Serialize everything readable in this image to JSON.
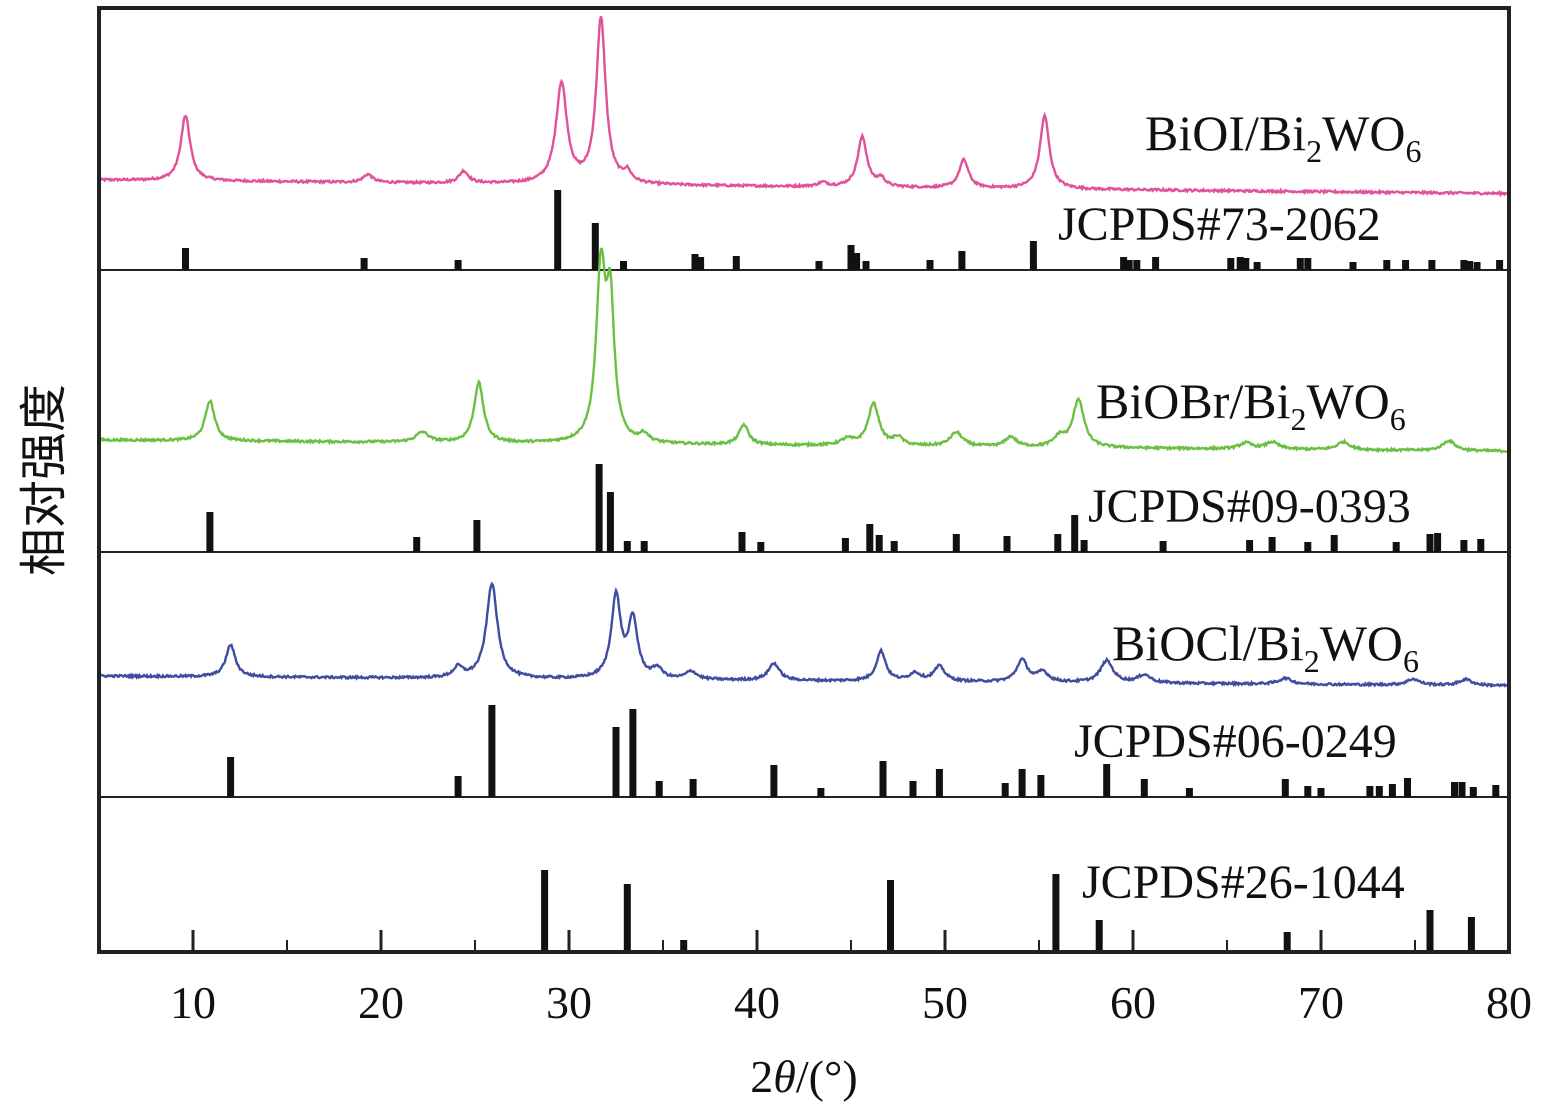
{
  "chart_data": {
    "type": "line",
    "xlabel": "2θ/(°)",
    "ylabel": "相对强度",
    "xlim": [
      5,
      80
    ],
    "x_ticks": [
      10,
      20,
      30,
      40,
      50,
      60,
      70,
      80
    ],
    "grid": false,
    "panels": [
      {
        "label_main": "BiOI/Bi",
        "label_sub": "2",
        "label_main2": "WO",
        "label_sub2": "6",
        "color": "#e0529a",
        "pattern": {
          "peaks": [
            [
              9.6,
              65
            ],
            [
              19.3,
              8
            ],
            [
              24.4,
              12
            ],
            [
              29.6,
              100
            ],
            [
              31.7,
              165
            ],
            [
              33.1,
              10
            ],
            [
              45.6,
              50
            ],
            [
              46.6,
              8
            ],
            [
              51.0,
              28
            ],
            [
              55.3,
              73
            ],
            [
              43.5,
              4
            ]
          ],
          "widths": [
            0.3,
            0.3,
            0.3,
            0.35,
            0.3,
            0.25,
            0.3,
            0.25,
            0.3,
            0.3,
            0.3
          ]
        },
        "reference": {
          "name": "JCPDS#73-2062",
          "lines": [
            [
              9.6,
              22
            ],
            [
              19.1,
              12
            ],
            [
              24.1,
              10
            ],
            [
              29.4,
              80
            ],
            [
              31.4,
              47
            ],
            [
              32.9,
              9
            ],
            [
              36.7,
              16
            ],
            [
              37.0,
              13
            ],
            [
              38.9,
              14
            ],
            [
              43.3,
              9
            ],
            [
              45.0,
              25
            ],
            [
              45.3,
              17
            ],
            [
              45.8,
              9
            ],
            [
              49.2,
              10
            ],
            [
              50.9,
              19
            ],
            [
              54.7,
              29
            ],
            [
              59.5,
              13
            ],
            [
              59.8,
              10
            ],
            [
              60.2,
              10
            ],
            [
              61.2,
              13
            ],
            [
              65.2,
              12
            ],
            [
              65.7,
              13
            ],
            [
              66.0,
              12
            ],
            [
              66.6,
              8
            ],
            [
              68.9,
              12
            ],
            [
              69.3,
              12
            ],
            [
              71.7,
              8
            ],
            [
              73.5,
              10
            ],
            [
              74.5,
              10
            ],
            [
              75.9,
              10
            ],
            [
              77.6,
              10
            ],
            [
              77.9,
              9
            ],
            [
              78.3,
              8
            ],
            [
              79.5,
              10
            ]
          ]
        }
      },
      {
        "label_main": "BiOBr/Bi",
        "label_sub": "2",
        "label_main2": "WO",
        "label_sub2": "6",
        "color": "#6bc044",
        "pattern": {
          "peaks": [
            [
              10.9,
              40
            ],
            [
              22.2,
              10
            ],
            [
              25.2,
              60
            ],
            [
              31.7,
              170
            ],
            [
              32.2,
              128
            ],
            [
              34.0,
              8
            ],
            [
              39.3,
              20
            ],
            [
              44.8,
              6
            ],
            [
              46.2,
              42
            ],
            [
              47.5,
              8
            ],
            [
              50.6,
              14
            ],
            [
              53.5,
              10
            ],
            [
              56.1,
              10
            ],
            [
              57.1,
              48
            ],
            [
              66.0,
              6
            ],
            [
              67.4,
              7
            ],
            [
              71.2,
              8
            ],
            [
              76.8,
              10
            ]
          ],
          "widths": [
            0.3,
            0.4,
            0.3,
            0.3,
            0.25,
            0.3,
            0.3,
            0.4,
            0.35,
            0.3,
            0.4,
            0.35,
            0.35,
            0.35,
            0.4,
            0.4,
            0.4,
            0.4
          ]
        },
        "reference": {
          "name": "JCPDS#09-0393",
          "lines": [
            [
              10.9,
              40
            ],
            [
              21.9,
              15
            ],
            [
              25.1,
              32
            ],
            [
              31.6,
              88
            ],
            [
              32.2,
              60
            ],
            [
              33.1,
              11
            ],
            [
              34.0,
              11
            ],
            [
              39.2,
              20
            ],
            [
              40.2,
              10
            ],
            [
              44.7,
              14
            ],
            [
              46.0,
              28
            ],
            [
              46.5,
              17
            ],
            [
              47.3,
              11
            ],
            [
              50.6,
              18
            ],
            [
              53.3,
              16
            ],
            [
              56.0,
              18
            ],
            [
              56.9,
              37
            ],
            [
              57.4,
              12
            ],
            [
              61.6,
              11
            ],
            [
              66.2,
              12
            ],
            [
              67.4,
              15
            ],
            [
              69.3,
              10
            ],
            [
              70.7,
              17
            ],
            [
              74.0,
              10
            ],
            [
              75.8,
              18
            ],
            [
              76.2,
              19
            ],
            [
              77.6,
              12
            ],
            [
              78.5,
              13
            ]
          ]
        }
      },
      {
        "label_main": "BiOCl/Bi",
        "label_sub": "2",
        "label_main2": "WO",
        "label_sub2": "6",
        "color": "#3e4da0",
        "pattern": {
          "peaks": [
            [
              12.0,
              32
            ],
            [
              24.1,
              10
            ],
            [
              25.9,
              95
            ],
            [
              32.5,
              82
            ],
            [
              33.4,
              58
            ],
            [
              34.7,
              10
            ],
            [
              36.5,
              8
            ],
            [
              40.9,
              17
            ],
            [
              46.6,
              30
            ],
            [
              48.4,
              8
            ],
            [
              49.7,
              15
            ],
            [
              54.1,
              22
            ],
            [
              55.2,
              10
            ],
            [
              58.6,
              22
            ],
            [
              60.6,
              8
            ],
            [
              68.1,
              6
            ],
            [
              74.9,
              6
            ],
            [
              77.7,
              6
            ]
          ],
          "widths": [
            0.3,
            0.3,
            0.35,
            0.3,
            0.3,
            0.3,
            0.35,
            0.35,
            0.3,
            0.35,
            0.35,
            0.35,
            0.35,
            0.4,
            0.4,
            0.4,
            0.4,
            0.4
          ]
        },
        "reference": {
          "name": "JCPDS#06-0249",
          "lines": [
            [
              12.0,
              40
            ],
            [
              24.1,
              21
            ],
            [
              25.9,
              92
            ],
            [
              32.5,
              70
            ],
            [
              33.4,
              88
            ],
            [
              34.8,
              16
            ],
            [
              36.6,
              18
            ],
            [
              40.9,
              32
            ],
            [
              43.4,
              9
            ],
            [
              46.7,
              36
            ],
            [
              48.3,
              16
            ],
            [
              49.7,
              28
            ],
            [
              53.2,
              14
            ],
            [
              54.1,
              28
            ],
            [
              55.1,
              22
            ],
            [
              58.6,
              33
            ],
            [
              60.6,
              18
            ],
            [
              63.0,
              9
            ],
            [
              68.1,
              18
            ],
            [
              69.3,
              11
            ],
            [
              70.0,
              9
            ],
            [
              72.6,
              11
            ],
            [
              73.1,
              11
            ],
            [
              73.8,
              13
            ],
            [
              74.6,
              19
            ],
            [
              77.1,
              15
            ],
            [
              77.5,
              15
            ],
            [
              78.1,
              10
            ],
            [
              79.3,
              12
            ]
          ]
        }
      },
      {
        "reference": {
          "name": "JCPDS#26-1044",
          "lines": [
            [
              28.7,
              82
            ],
            [
              33.1,
              68
            ],
            [
              36.1,
              12
            ],
            [
              47.1,
              72
            ],
            [
              55.9,
              78
            ],
            [
              58.2,
              32
            ],
            [
              68.2,
              20
            ],
            [
              75.8,
              42
            ],
            [
              78.0,
              35
            ]
          ]
        }
      }
    ]
  }
}
